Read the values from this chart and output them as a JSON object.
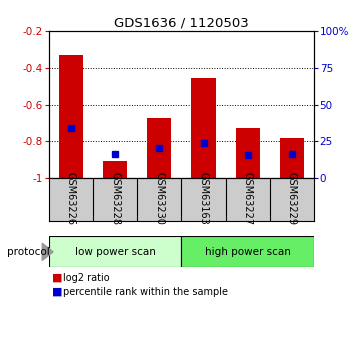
{
  "title": "GDS1636 / 1120503",
  "samples": [
    "GSM63226",
    "GSM63228",
    "GSM63230",
    "GSM63163",
    "GSM63227",
    "GSM63229"
  ],
  "bar_tops": [
    -0.33,
    -0.905,
    -0.675,
    -0.455,
    -0.73,
    -0.78
  ],
  "bar_bottom": -1.0,
  "blue_y": [
    -0.725,
    -0.87,
    -0.835,
    -0.81,
    -0.875,
    -0.87
  ],
  "ylim": [
    -1.0,
    -0.2
  ],
  "yticks_left": [
    -1.0,
    -0.8,
    -0.6,
    -0.4,
    -0.2
  ],
  "yticks_left_labels": [
    "-1",
    "-0.8",
    "-0.6",
    "-0.4",
    "-0.2"
  ],
  "yticks_right_labels": [
    "0",
    "25",
    "50",
    "75",
    "100%"
  ],
  "left_axis_color": "#cc0000",
  "right_axis_color": "#0000cc",
  "bar_color": "#cc0000",
  "blue_color": "#0000cc",
  "grid_color": "#000000",
  "group1_label": "low power scan",
  "group2_label": "high power scan",
  "group1_color": "#ccffcc",
  "group2_color": "#66ee66",
  "group1_indices": [
    0,
    1,
    2
  ],
  "group2_indices": [
    3,
    4,
    5
  ],
  "protocol_label": "protocol",
  "legend_red_label": "log2 ratio",
  "legend_blue_label": "percentile rank within the sample",
  "bg_color": "#ffffff",
  "sample_box_color": "#cccccc",
  "bar_width": 0.55
}
